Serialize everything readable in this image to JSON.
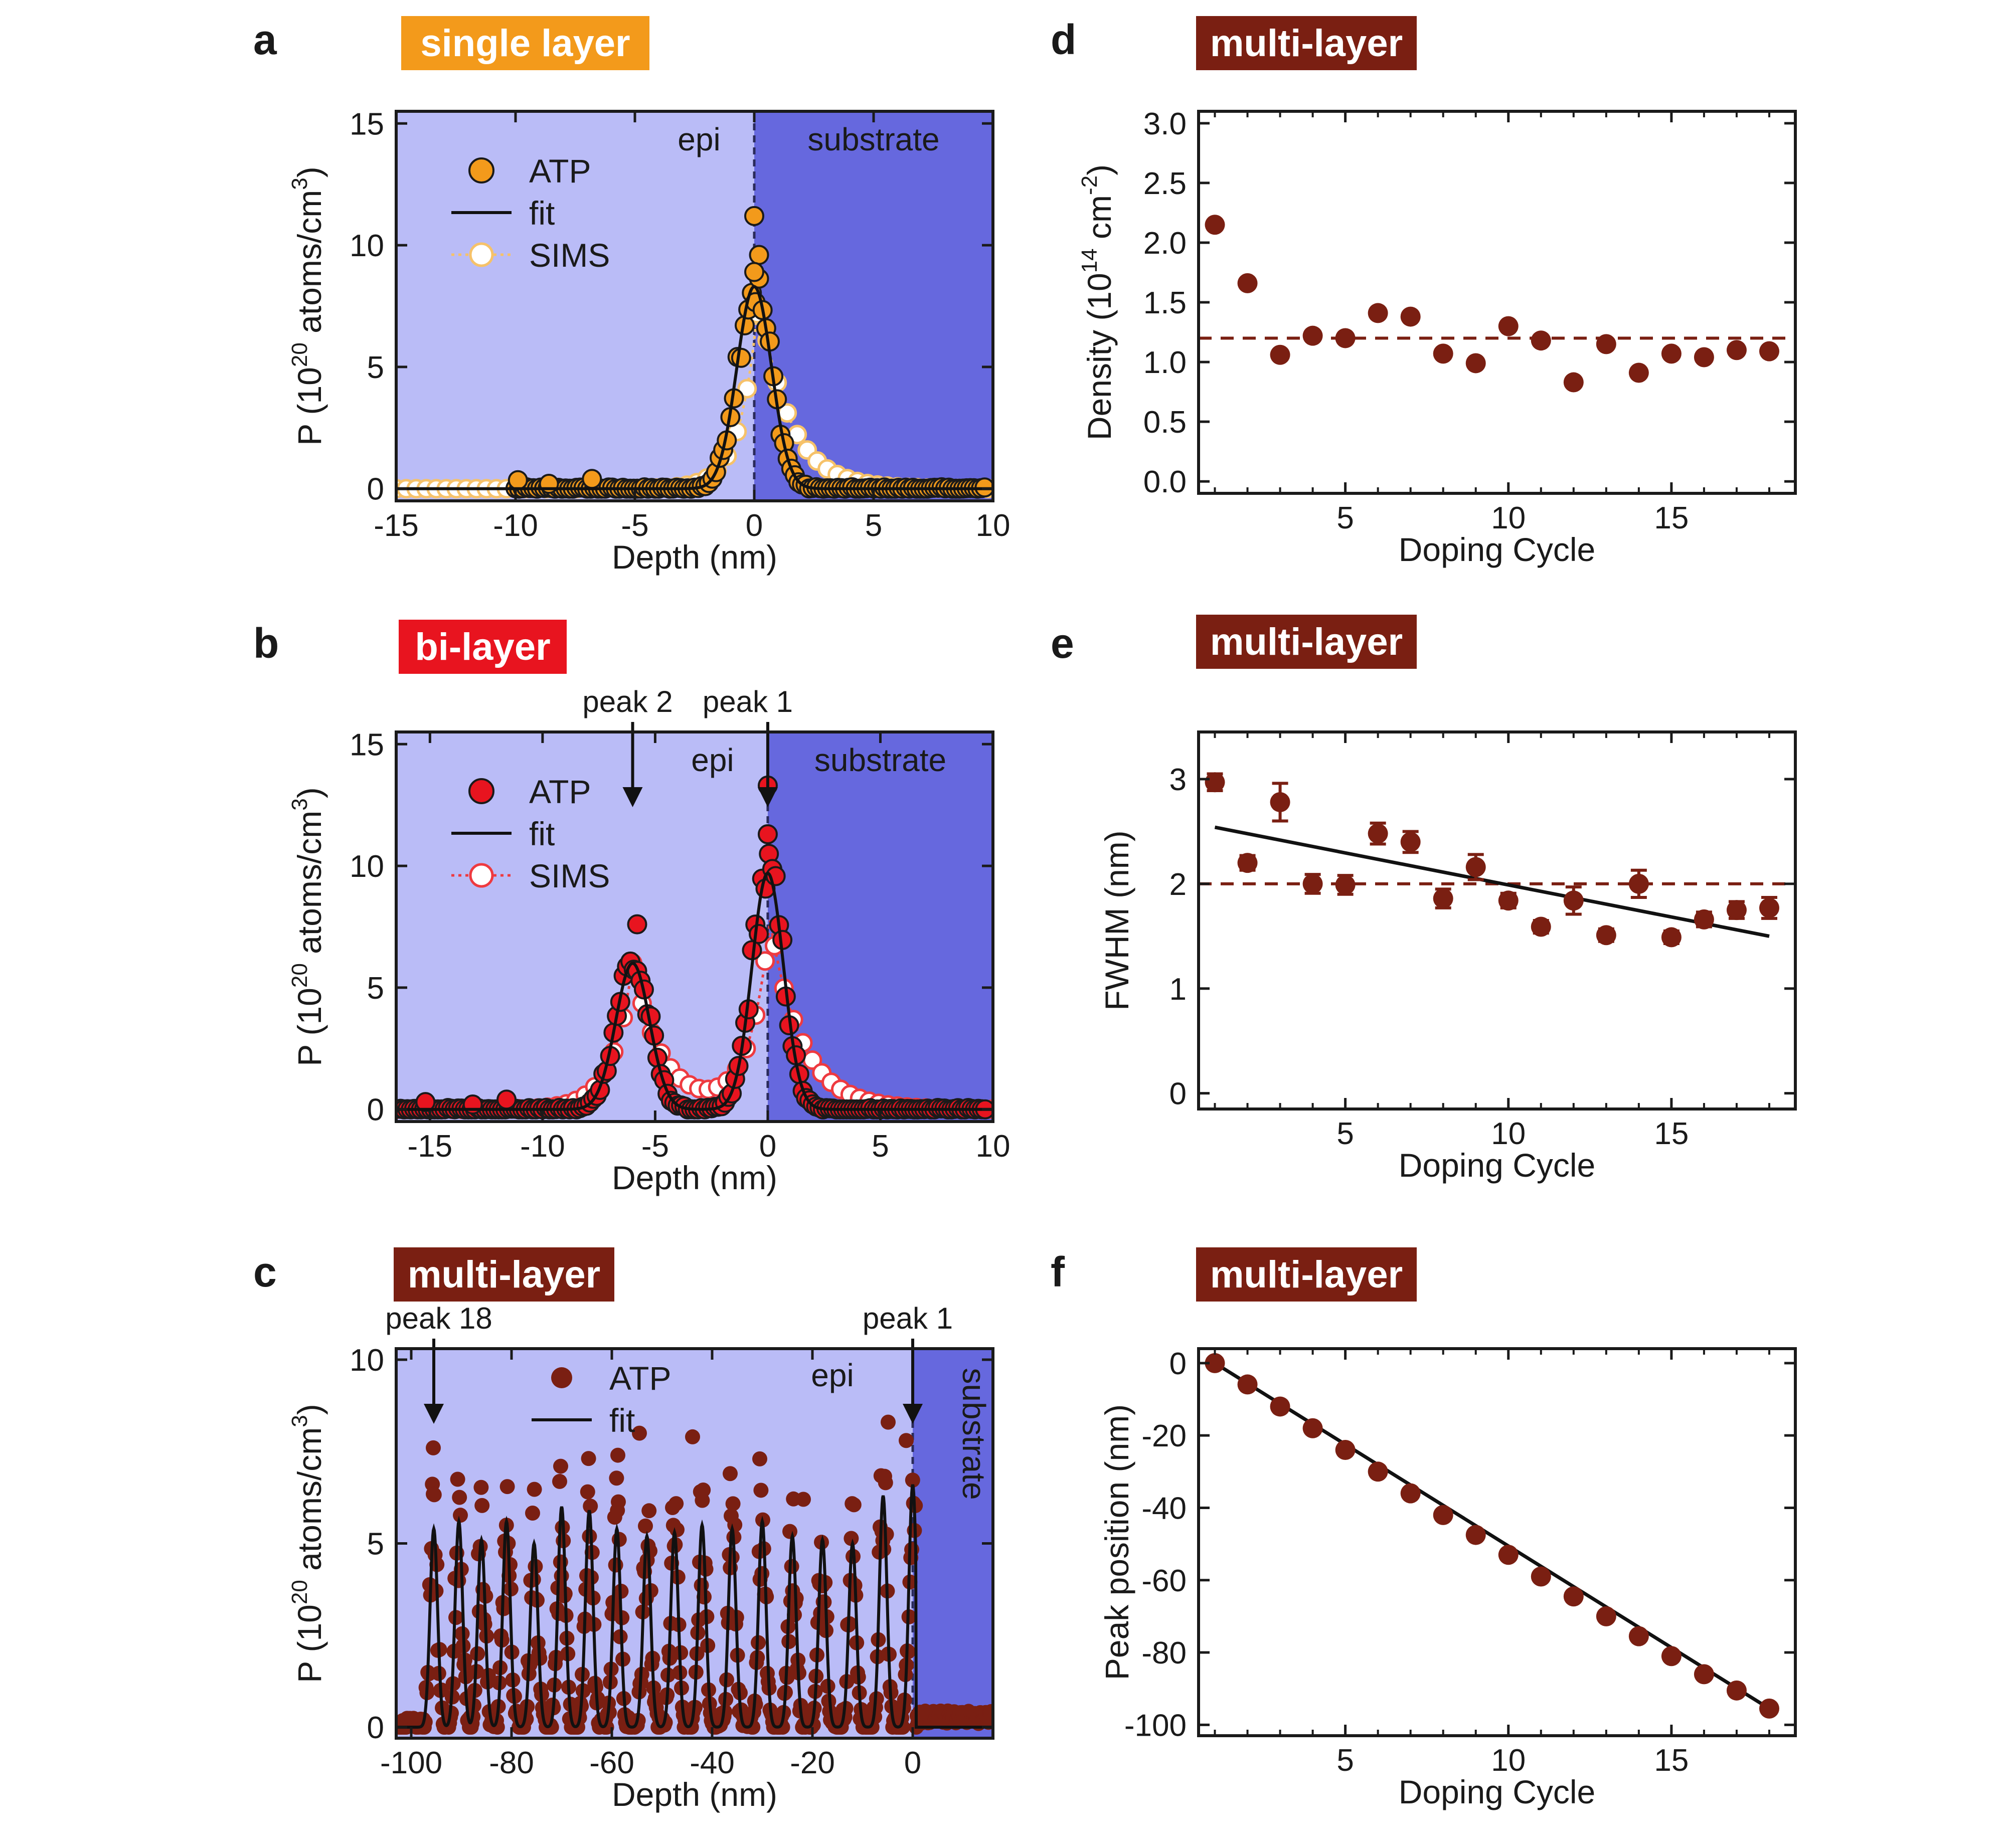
{
  "colors": {
    "orange": "#F39A1B",
    "red": "#E8141F",
    "maroon": "#7A1F12",
    "epi_bg": "#BABCF7",
    "substrate_bg": "#6668DE",
    "sims_orange": "#F6C26A",
    "sims_red": "#EE3A40"
  },
  "chart_data": [
    {
      "id": "a",
      "type": "scatter",
      "panel_label": "a",
      "badge": "single layer",
      "xlabel": "Depth (nm)",
      "ylabel": "P (10",
      "ylabel_exp": "20",
      "ylabel_rest": " atoms/cm",
      "ylabel_exp2": "3",
      "ylabel_end": ")",
      "xlim": [
        -15,
        10
      ],
      "ylim": [
        -0.5,
        15.5
      ],
      "xticks": [
        "-15",
        "-10",
        "-5",
        "0",
        "5",
        "10"
      ],
      "yticks": [
        "0",
        "5",
        "10",
        "15"
      ],
      "region_left": "epi",
      "region_right": "substrate",
      "interface": 0,
      "legend": [
        "ATP",
        "fit",
        "SIMS"
      ],
      "fit": {
        "peaks": [
          {
            "center": 0,
            "amp": 8.3,
            "sigma": 0.72
          }
        ]
      },
      "sims": {
        "peaks": [
          {
            "center": 0.2,
            "amp": 8.0,
            "left": 0.75,
            "right": 1.25
          }
        ]
      },
      "outliers": [
        [
          0.0,
          11.2
        ],
        [
          0.2,
          9.6
        ],
        [
          0.0,
          8.9
        ],
        [
          -9.9,
          0.35
        ],
        [
          -6.8,
          0.4
        ],
        [
          -8.6,
          0.2
        ]
      ]
    },
    {
      "id": "b",
      "type": "scatter",
      "panel_label": "b",
      "badge": "bi-layer",
      "xlabel": "Depth (nm)",
      "ylabel": "P (10",
      "ylabel_exp": "20",
      "ylabel_rest": " atoms/cm",
      "ylabel_exp2": "3",
      "ylabel_end": ")",
      "xlim": [
        -16.5,
        10
      ],
      "ylim": [
        -0.5,
        15.5
      ],
      "xticks": [
        "-15",
        "-10",
        "-5",
        "0",
        "5",
        "10"
      ],
      "yticks": [
        "0",
        "5",
        "10",
        "15"
      ],
      "region_left": "epi",
      "region_right": "substrate",
      "interface": 0,
      "legend": [
        "ATP",
        "fit",
        "SIMS"
      ],
      "annotations": [
        {
          "text": "peak 2",
          "x": -6
        },
        {
          "text": "peak 1",
          "x": 0
        }
      ],
      "fit": {
        "peaks": [
          {
            "center": -6,
            "amp": 6.0,
            "sigma": 0.75
          },
          {
            "center": 0,
            "amp": 9.7,
            "sigma": 0.7
          }
        ]
      },
      "sims": {
        "peaks": [
          {
            "center": -6,
            "amp": 6.0,
            "left": 0.9,
            "right": 1.3
          },
          {
            "center": 0.1,
            "amp": 7.7,
            "left": 0.9,
            "right": 1.4
          }
        ]
      },
      "outliers": [
        [
          0.0,
          13.3
        ],
        [
          0.0,
          11.3
        ],
        [
          -5.8,
          7.6
        ],
        [
          -11.6,
          0.4
        ],
        [
          -15.2,
          0.3
        ],
        [
          -13.1,
          0.2
        ]
      ]
    },
    {
      "id": "c",
      "type": "scatter",
      "panel_label": "c",
      "badge": "multi-layer",
      "xlabel": "Depth (nm)",
      "ylabel": "P (10",
      "ylabel_exp": "20",
      "ylabel_rest": " atoms/cm",
      "ylabel_exp2": "3",
      "ylabel_end": ")",
      "xlim": [
        -103,
        16
      ],
      "ylim": [
        -0.3,
        10.3
      ],
      "xticks": [
        "-100",
        "-80",
        "-60",
        "-40",
        "-20",
        "0"
      ],
      "yticks": [
        "0",
        "5",
        "10"
      ],
      "region_left": "epi",
      "region_right": "substrate",
      "interface": 0,
      "legend": [
        "ATP",
        "fit"
      ],
      "annotations": [
        {
          "text": "peak 18",
          "x": -95.5
        },
        {
          "text": "peak 1",
          "x": 0
        }
      ],
      "peak_centers": [
        0,
        -5.9,
        -12,
        -18,
        -24,
        -30,
        -36,
        -42,
        -47.5,
        -53,
        -59,
        -64.5,
        -70,
        -75.5,
        -81,
        -86,
        -90.5,
        -95.5
      ],
      "peak_heights": [
        6.6,
        6.3,
        5.0,
        5.1,
        5.2,
        5.6,
        5.4,
        5.5,
        5.3,
        5.2,
        5.4,
        5.9,
        6.0,
        5.0,
        5.6,
        5.1,
        5.6,
        5.4
      ],
      "outliers": [
        [
          -95.6,
          7.6
        ],
        [
          -4.9,
          8.3
        ],
        [
          -54.5,
          8.0
        ],
        [
          -43.9,
          7.9
        ],
        [
          -30.5,
          7.3
        ],
        [
          -70.2,
          7.1
        ],
        [
          -58.8,
          7.4
        ],
        [
          -36.4,
          6.9
        ],
        [
          -21.8,
          6.2
        ],
        [
          -1.3,
          7.8
        ]
      ]
    },
    {
      "id": "d",
      "type": "scatter",
      "panel_label": "d",
      "badge": "multi-layer",
      "xlabel": "Doping Cycle",
      "ylabel": "Density (10",
      "ylabel_exp": "14",
      "ylabel_rest": " cm",
      "ylabel_exp2": "-2",
      "ylabel_end": ")",
      "xlim": [
        0.5,
        18.8
      ],
      "ylim": [
        -0.1,
        3.1
      ],
      "xticks": [
        "5",
        "10",
        "15"
      ],
      "xtick_values": [
        5,
        10,
        15
      ],
      "yticks": [
        "0.0",
        "0.5",
        "1.0",
        "1.5",
        "2.0",
        "2.5",
        "3.0"
      ],
      "ytick_values": [
        0,
        0.5,
        1.0,
        1.5,
        2.0,
        2.5,
        3.0
      ],
      "x": [
        1,
        2,
        3,
        4,
        5,
        6,
        7,
        8,
        9,
        10,
        11,
        12,
        13,
        14,
        15,
        16,
        17,
        18
      ],
      "y": [
        2.15,
        1.66,
        1.06,
        1.22,
        1.2,
        1.41,
        1.38,
        1.07,
        0.99,
        1.3,
        1.18,
        0.83,
        1.15,
        0.91,
        1.07,
        1.04,
        1.1,
        1.09
      ],
      "mean_line": 1.2
    },
    {
      "id": "e",
      "type": "scatter",
      "panel_label": "e",
      "badge": "multi-layer",
      "xlabel": "Doping Cycle",
      "ylabel": "FWHM (nm)",
      "xlim": [
        0.5,
        18.8
      ],
      "ylim": [
        -0.15,
        3.45
      ],
      "xticks": [
        "5",
        "10",
        "15"
      ],
      "xtick_values": [
        5,
        10,
        15
      ],
      "yticks": [
        "0",
        "1",
        "2",
        "3"
      ],
      "ytick_values": [
        0,
        1,
        2,
        3
      ],
      "x": [
        1,
        2,
        3,
        4,
        5,
        6,
        7,
        8,
        9,
        10,
        11,
        12,
        13,
        14,
        15,
        16,
        17,
        18
      ],
      "y": [
        2.97,
        2.2,
        2.78,
        2.0,
        1.99,
        2.48,
        2.4,
        1.86,
        2.16,
        1.84,
        1.59,
        1.84,
        1.51,
        2.0,
        1.49,
        1.66,
        1.75,
        1.77
      ],
      "err": [
        0.08,
        0.07,
        0.18,
        0.09,
        0.09,
        0.1,
        0.1,
        0.09,
        0.12,
        0.07,
        0.06,
        0.13,
        0.06,
        0.13,
        0.06,
        0.07,
        0.08,
        0.1
      ],
      "trend": [
        [
          1,
          2.54
        ],
        [
          18,
          1.5
        ]
      ],
      "mean_line": 2.0
    },
    {
      "id": "f",
      "type": "scatter",
      "panel_label": "f",
      "badge": "multi-layer",
      "xlabel": "Doping Cycle",
      "ylabel": "Peak position (nm)",
      "xlim": [
        0.5,
        18.8
      ],
      "ylim": [
        -103,
        4
      ],
      "xticks": [
        "5",
        "10",
        "15"
      ],
      "xtick_values": [
        5,
        10,
        15
      ],
      "yticks": [
        "0",
        "-20",
        "-40",
        "-60",
        "-80",
        "-100"
      ],
      "ytick_values": [
        0,
        -20,
        -40,
        -60,
        -80,
        -100
      ],
      "x": [
        1,
        2,
        3,
        4,
        5,
        6,
        7,
        8,
        9,
        10,
        11,
        12,
        13,
        14,
        15,
        16,
        17,
        18
      ],
      "y": [
        0,
        -5.9,
        -12,
        -18,
        -24,
        -30,
        -36,
        -42,
        -47.5,
        -53,
        -59,
        -64.5,
        -70,
        -75.5,
        -81,
        -86,
        -90.5,
        -95.5
      ],
      "trend": [
        [
          1,
          0
        ],
        [
          18,
          -95.5
        ]
      ]
    }
  ]
}
